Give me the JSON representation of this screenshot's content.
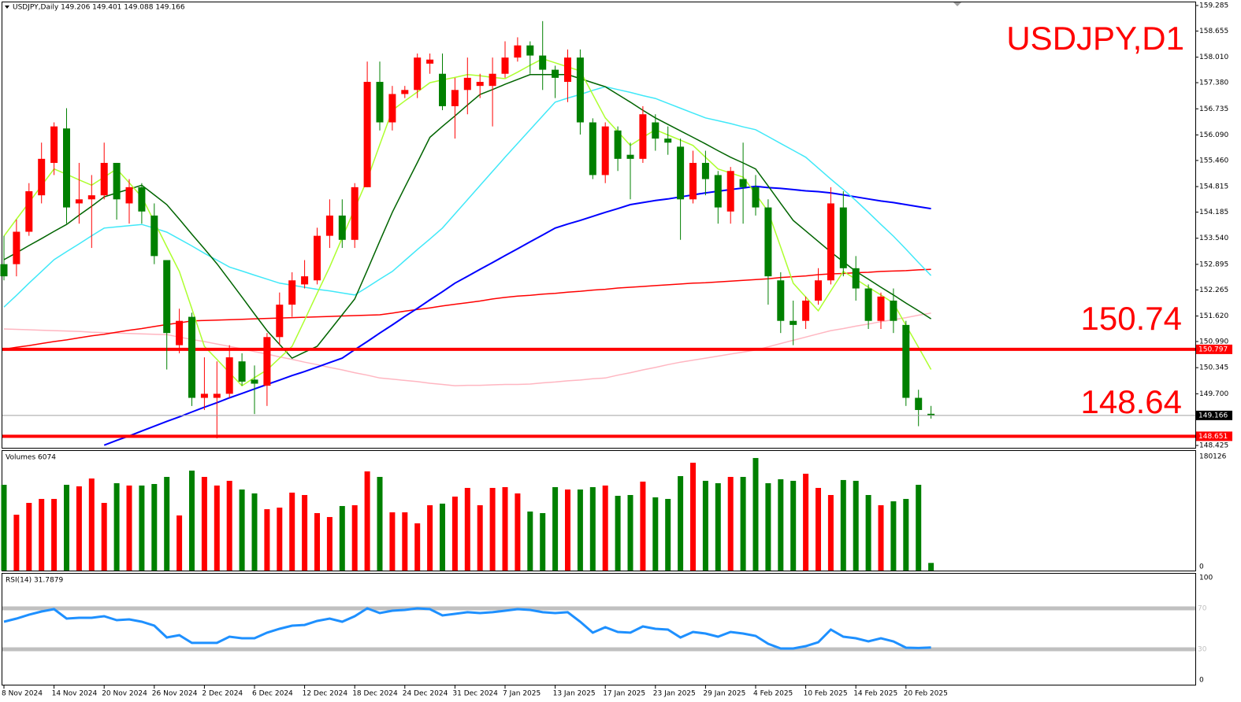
{
  "header": "USDJPY,Daily  149.206 149.401 149.088 149.166",
  "chart_data": [
    {
      "type": "candlestick",
      "title": "USDJPY,D1",
      "categories": [
        "8 Nov 2024",
        null,
        null,
        null,
        "14 Nov 2024",
        null,
        null,
        null,
        "20 Nov 2024",
        null,
        null,
        null,
        "26 Nov 2024",
        null,
        null,
        null,
        "2 Dec 2024",
        null,
        null,
        null,
        "6 Dec 2024",
        null,
        null,
        null,
        "12 Dec 2024",
        null,
        null,
        null,
        "18 Dec 2024",
        null,
        null,
        null,
        "24 Dec 2024",
        null,
        null,
        null,
        "31 Dec 2024",
        null,
        null,
        null,
        "7 Jan 2025",
        null,
        null,
        null,
        "13 Jan 2025",
        null,
        null,
        null,
        "17 Jan 2025",
        null,
        null,
        null,
        "23 Jan 2025",
        null,
        null,
        null,
        "29 Jan 2025",
        null,
        null,
        null,
        "4 Feb 2025",
        null,
        null,
        null,
        "10 Feb 2025",
        null,
        null,
        null,
        "14 Feb 2025",
        null,
        null,
        null,
        "20 Feb 2025",
        null,
        null
      ],
      "open": [
        152.9,
        152.9,
        153.7,
        154.6,
        155.4,
        156.25,
        154.4,
        154.5,
        154.6,
        155.4,
        154.4,
        154.8,
        154.1,
        153.0,
        150.9,
        151.6,
        149.6,
        149.6,
        149.7,
        150.5,
        150.05,
        149.9,
        151.1,
        151.9,
        152.4,
        152.5,
        153.6,
        154.1,
        153.5,
        154.8,
        157.4,
        156.4,
        157.1,
        157.2,
        157.85,
        157.6,
        156.8,
        157.2,
        157.3,
        157.3,
        157.6,
        158.0,
        158.3,
        158.05,
        157.7,
        157.4,
        158.0,
        156.4,
        155.1,
        156.2,
        155.6,
        155.5,
        156.4,
        156.0,
        155.8,
        154.5,
        155.4,
        155.1,
        154.2,
        155.0,
        154.8,
        154.3,
        152.5,
        151.5,
        151.5,
        152.0,
        152.5,
        154.3,
        152.8,
        152.3,
        151.5,
        152.0,
        151.4,
        149.6,
        149.206
      ],
      "high": [
        153.6,
        154.0,
        154.9,
        155.9,
        156.4,
        156.75,
        155.4,
        155.1,
        155.9,
        155.4,
        155.0,
        154.9,
        154.4,
        153.0,
        151.8,
        151.7,
        150.6,
        150.5,
        150.9,
        150.7,
        150.4,
        151.2,
        152.2,
        152.7,
        153.0,
        153.8,
        154.5,
        154.5,
        154.9,
        157.9,
        157.9,
        157.3,
        157.3,
        158.1,
        158.1,
        158.1,
        157.5,
        158.0,
        157.6,
        158.0,
        158.4,
        158.5,
        158.4,
        158.9,
        157.8,
        158.2,
        158.2,
        156.5,
        156.4,
        156.3,
        155.9,
        156.8,
        156.6,
        156.3,
        156.0,
        155.7,
        155.7,
        155.2,
        155.3,
        155.9,
        155.1,
        154.5,
        152.7,
        152.0,
        152.1,
        152.8,
        154.8,
        154.7,
        153.1,
        152.4,
        152.2,
        152.3,
        151.5,
        149.8,
        149.401
      ],
      "low": [
        152.5,
        152.6,
        153.6,
        154.4,
        155.1,
        153.9,
        153.9,
        153.3,
        154.5,
        154.0,
        153.9,
        153.9,
        152.9,
        150.3,
        150.7,
        149.4,
        149.3,
        148.6,
        149.6,
        149.9,
        149.2,
        149.4,
        150.9,
        151.6,
        152.3,
        152.4,
        153.3,
        153.3,
        153.3,
        154.8,
        156.2,
        156.2,
        157.0,
        157.0,
        157.6,
        156.7,
        156.0,
        156.6,
        157.0,
        156.3,
        157.5,
        157.9,
        157.6,
        157.2,
        157.0,
        156.9,
        156.1,
        155.0,
        154.9,
        155.2,
        154.5,
        155.4,
        155.7,
        155.6,
        153.5,
        154.4,
        154.6,
        153.9,
        153.9,
        153.9,
        154.1,
        151.9,
        151.2,
        150.9,
        151.3,
        151.9,
        152.4,
        152.6,
        152.0,
        151.3,
        151.3,
        151.2,
        149.4,
        148.9,
        149.088
      ],
      "close": [
        152.6,
        153.7,
        154.7,
        155.5,
        156.3,
        154.3,
        154.5,
        154.6,
        155.4,
        154.5,
        154.8,
        154.2,
        153.1,
        151.2,
        151.5,
        149.6,
        149.7,
        149.7,
        150.6,
        150.0,
        149.95,
        151.1,
        151.9,
        152.5,
        152.6,
        153.6,
        154.1,
        153.5,
        154.8,
        157.4,
        156.4,
        157.1,
        157.2,
        158.0,
        157.95,
        156.8,
        157.2,
        157.5,
        157.4,
        157.6,
        158.0,
        158.3,
        158.05,
        157.7,
        157.5,
        158.0,
        156.4,
        155.1,
        156.3,
        155.5,
        155.5,
        156.6,
        156.0,
        155.9,
        154.5,
        155.4,
        155.0,
        154.3,
        155.2,
        154.8,
        154.3,
        152.6,
        151.5,
        151.4,
        152.0,
        152.5,
        154.4,
        152.8,
        152.3,
        151.5,
        152.1,
        151.5,
        149.6,
        149.3,
        149.166
      ],
      "up_color": "#ff0000",
      "down_color": "#008000",
      "ylim": [
        148.425,
        159.285
      ],
      "yticks": [
        159.285,
        158.655,
        {
          "value": 158.01,
          "label": "158.010"
        },
        {
          "value": 157.38,
          "label": "157.380"
        },
        156.735,
        {
          "value": 156.09,
          "label": "156.090"
        },
        {
          "value": 155.46,
          "label": "155.460"
        },
        154.815,
        154.185,
        {
          "value": 153.54,
          "label": "153.540"
        },
        152.895,
        152.265,
        {
          "value": 151.62,
          "label": "151.620"
        },
        {
          "value": 150.99,
          "label": "150.990"
        },
        150.345,
        {
          "value": 149.7,
          "label": "149.700"
        },
        148.425
      ],
      "lines": [
        {
          "color": "#ffb6c1",
          "values": [
            151.3,
            151.29,
            151.28,
            151.27,
            151.26,
            151.25,
            151.24,
            151.22,
            151.21,
            151.2,
            151.19,
            151.18,
            151.17,
            151.16,
            151.1,
            151.04,
            150.99,
            150.93,
            150.87,
            150.81,
            150.74,
            150.68,
            150.61,
            150.55,
            150.48,
            150.42,
            150.35,
            150.29,
            150.22,
            150.16,
            150.09,
            150.06,
            150.03,
            150.0,
            149.96,
            149.93,
            149.9,
            149.91,
            149.91,
            149.92,
            149.93,
            149.93,
            149.94,
            149.97,
            149.99,
            150.02,
            150.04,
            150.07,
            150.09,
            150.16,
            150.22,
            150.29,
            150.35,
            150.42,
            150.48,
            150.53,
            150.58,
            150.63,
            150.68,
            150.73,
            150.78,
            150.86,
            150.94,
            151.02,
            151.1,
            151.18,
            151.26,
            151.31,
            151.37,
            151.42,
            151.48,
            151.53,
            151.58,
            151.64,
            151.69
          ]
        },
        {
          "color": "#ff0000",
          "values": [
            150.8,
            150.85,
            150.89,
            150.94,
            150.99,
            151.03,
            151.08,
            151.13,
            151.17,
            151.22,
            151.27,
            151.31,
            151.36,
            151.41,
            151.45,
            151.5,
            151.51,
            151.52,
            151.53,
            151.54,
            151.55,
            151.56,
            151.57,
            151.58,
            151.59,
            151.6,
            151.61,
            151.62,
            151.63,
            151.64,
            151.65,
            151.69,
            151.74,
            151.78,
            151.82,
            151.87,
            151.91,
            151.95,
            151.99,
            152.04,
            152.08,
            152.11,
            152.13,
            152.16,
            152.18,
            152.21,
            152.23,
            152.26,
            152.28,
            152.31,
            152.33,
            152.35,
            152.37,
            152.39,
            152.41,
            152.43,
            152.44,
            152.46,
            152.48,
            152.5,
            152.52,
            152.54,
            152.57,
            152.59,
            152.61,
            152.64,
            152.66,
            152.67,
            152.69,
            152.7,
            152.72,
            152.73,
            152.74,
            152.76,
            152.77
          ]
        },
        {
          "color": "#0000ff",
          "values": [
            null,
            null,
            null,
            null,
            null,
            null,
            null,
            null,
            148.43,
            148.55,
            148.66,
            148.78,
            148.9,
            149.02,
            149.13,
            149.25,
            149.37,
            149.48,
            149.6,
            149.71,
            149.82,
            149.93,
            150.04,
            150.15,
            150.25,
            150.36,
            150.47,
            150.58,
            150.79,
            150.99,
            151.2,
            151.4,
            151.61,
            151.81,
            152.02,
            152.22,
            152.43,
            152.6,
            152.77,
            152.94,
            153.11,
            153.28,
            153.45,
            153.62,
            153.79,
            153.89,
            153.98,
            154.08,
            154.18,
            154.27,
            154.37,
            154.42,
            154.47,
            154.51,
            154.56,
            154.61,
            154.66,
            154.7,
            154.74,
            154.78,
            154.82,
            154.79,
            154.77,
            154.74,
            154.71,
            154.69,
            154.66,
            154.61,
            154.56,
            154.51,
            154.46,
            154.42,
            154.37,
            154.32,
            154.27
          ]
        },
        {
          "color": "#40e8f8",
          "values": [
            151.84,
            152.13,
            152.43,
            152.72,
            153.01,
            153.21,
            153.4,
            153.6,
            153.79,
            153.82,
            153.85,
            153.88,
            153.79,
            153.69,
            153.52,
            153.35,
            153.17,
            153.0,
            152.83,
            152.73,
            152.63,
            152.53,
            152.43,
            152.38,
            152.33,
            152.28,
            152.24,
            152.19,
            152.14,
            152.33,
            152.53,
            152.72,
            152.99,
            153.26,
            153.52,
            153.79,
            154.14,
            154.49,
            154.84,
            155.19,
            155.54,
            155.88,
            156.22,
            156.56,
            156.9,
            157.0,
            157.09,
            157.19,
            157.28,
            157.21,
            157.14,
            157.06,
            156.99,
            156.87,
            156.75,
            156.63,
            156.51,
            156.44,
            156.37,
            156.29,
            156.22,
            156.05,
            155.88,
            155.71,
            155.54,
            155.27,
            155.0,
            154.74,
            154.47,
            154.18,
            153.88,
            153.59,
            153.27,
            152.94,
            152.62
          ]
        },
        {
          "color": "#006400",
          "values": [
            153.01,
            153.18,
            153.36,
            153.53,
            153.71,
            153.88,
            154.11,
            154.33,
            154.56,
            154.66,
            154.75,
            154.85,
            154.61,
            154.37,
            154.01,
            153.64,
            153.28,
            152.91,
            152.5,
            152.09,
            151.67,
            151.26,
            150.92,
            150.58,
            150.73,
            150.87,
            151.26,
            151.65,
            152.04,
            152.75,
            153.47,
            154.18,
            154.8,
            155.41,
            156.03,
            156.3,
            156.56,
            156.83,
            157.09,
            157.21,
            157.34,
            157.46,
            157.58,
            157.58,
            157.58,
            157.58,
            157.48,
            157.38,
            157.28,
            157.09,
            156.9,
            156.7,
            156.51,
            156.35,
            156.19,
            156.03,
            155.87,
            155.7,
            155.54,
            155.4,
            155.25,
            154.83,
            154.4,
            153.98,
            153.72,
            153.46,
            153.2,
            152.96,
            152.72,
            152.53,
            152.33,
            152.14,
            151.94,
            151.75,
            151.55
          ]
        },
        {
          "color": "#adff2f",
          "values": [
            153.59,
            154.01,
            154.42,
            154.84,
            155.25,
            155.12,
            154.98,
            154.85,
            155.05,
            155.25,
            154.91,
            154.56,
            153.95,
            153.33,
            152.72,
            151.8,
            150.87,
            150.55,
            150.22,
            149.9,
            150.1,
            150.29,
            150.58,
            150.87,
            151.52,
            152.18,
            152.83,
            153.55,
            154.27,
            154.99,
            155.85,
            156.7,
            156.93,
            157.15,
            157.38,
            157.45,
            157.51,
            157.58,
            157.55,
            157.51,
            157.48,
            157.64,
            157.81,
            157.97,
            157.87,
            157.77,
            157.67,
            157.09,
            156.51,
            156.17,
            155.83,
            156.03,
            156.22,
            156.09,
            155.96,
            155.83,
            155.54,
            155.25,
            155.15,
            155.05,
            154.63,
            154.2,
            153.32,
            152.43,
            152.09,
            151.75,
            152.24,
            152.72,
            152.53,
            152.33,
            152.14,
            151.94,
            151.39,
            150.85,
            150.3
          ]
        }
      ],
      "levels": [
        {
          "value": 150.797,
          "color": "#ff0000"
        },
        {
          "value": 148.651,
          "color": "#ff0000"
        }
      ],
      "annotations": [
        "150.74",
        "148.64"
      ]
    },
    {
      "type": "bar",
      "title": "Volumes 6074",
      "values": [
        133800,
        84900,
        104200,
        110700,
        110700,
        133800,
        131300,
        144100,
        104200,
        136400,
        132600,
        132600,
        135100,
        146700,
        83700,
        157000,
        146700,
        132600,
        140300,
        126100,
        119700,
        93900,
        96500,
        121000,
        117100,
        87500,
        81100,
        99100,
        100400,
        155700,
        146700,
        88800,
        88800,
        70800,
        100400,
        103000,
        114500,
        128700,
        100400,
        128700,
        130000,
        119700,
        90100,
        87500,
        130000,
        126100,
        126100,
        130000,
        132600,
        115800,
        117100,
        139000,
        113300,
        110700,
        148000,
        169900,
        140300,
        136400,
        146700,
        146700,
        177600,
        136400,
        142900,
        140300,
        151900,
        128700,
        117100,
        141600,
        140300,
        117100,
        100400,
        106800,
        110700,
        133800,
        6074
      ],
      "ylim": [
        0,
        180126
      ],
      "yticks": [
        180126,
        0
      ]
    },
    {
      "type": "line",
      "title": "RSI(14) 31.7879",
      "color": "#1e90ff",
      "values": [
        56.9,
        60.0,
        63.8,
        66.9,
        69.2,
        60.0,
        60.8,
        60.8,
        62.3,
        58.5,
        59.2,
        56.9,
        53.1,
        41.5,
        43.8,
        36.2,
        36.2,
        36.2,
        42.3,
        40.8,
        40.8,
        46.2,
        50.0,
        53.1,
        53.8,
        57.7,
        60.0,
        56.9,
        62.3,
        70.0,
        65.4,
        67.7,
        68.5,
        70.0,
        69.2,
        63.1,
        64.6,
        66.2,
        65.4,
        66.2,
        67.7,
        69.2,
        68.5,
        66.2,
        65.4,
        66.2,
        56.9,
        46.2,
        51.5,
        46.9,
        46.2,
        52.3,
        50.0,
        49.2,
        41.5,
        46.9,
        45.4,
        42.3,
        46.9,
        45.4,
        43.1,
        35.4,
        30.8,
        30.8,
        33.1,
        36.9,
        49.2,
        42.3,
        40.8,
        37.7,
        40.8,
        37.7,
        31.5,
        31.2,
        31.7879
      ],
      "ylim": [
        0,
        100
      ],
      "yticks": [
        100,
        0
      ],
      "levels": [
        70,
        30
      ]
    }
  ]
}
